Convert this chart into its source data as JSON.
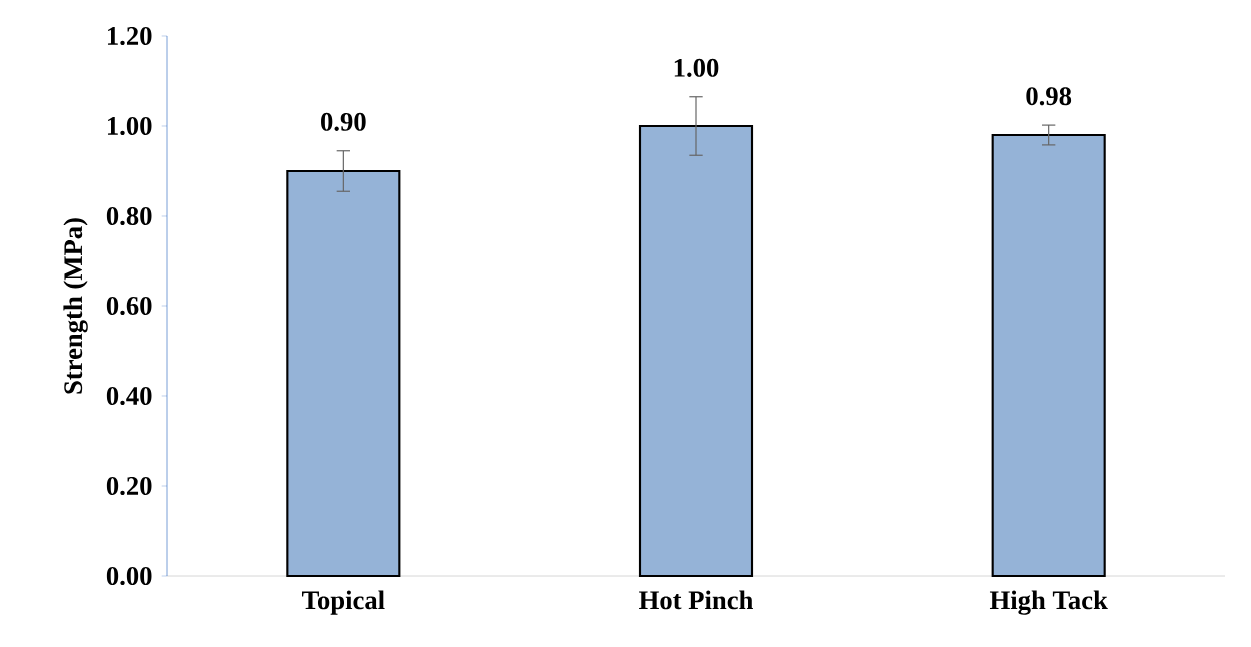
{
  "chart_data": {
    "type": "bar",
    "ylabel": "Strength (MPa)",
    "categories": [
      "Topical",
      "Hot Pinch",
      "High Tack"
    ],
    "values": [
      0.9,
      1.0,
      0.98
    ],
    "errors": [
      0.045,
      0.065,
      0.022
    ],
    "value_labels": [
      "0.90",
      "1.00",
      "0.98"
    ],
    "color": "#95b3d7",
    "ylim": [
      0,
      1.2
    ],
    "yticks": [
      {
        "value": 0,
        "label": "0.00"
      },
      {
        "value": 0.2,
        "label": "0.20"
      },
      {
        "value": 0.4,
        "label": "0.40"
      },
      {
        "value": 0.6,
        "label": "0.60"
      },
      {
        "value": 0.8,
        "label": "0.80"
      },
      {
        "value": 1.0,
        "label": "1.00"
      },
      {
        "value": 1.2,
        "label": "1.20"
      }
    ],
    "grid": false
  }
}
